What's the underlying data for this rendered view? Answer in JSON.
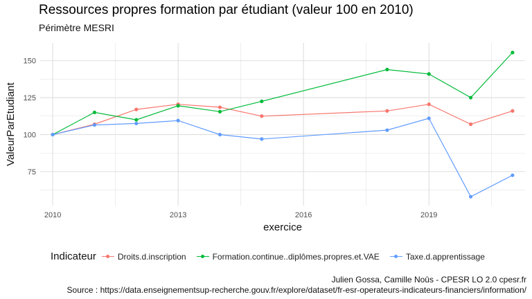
{
  "colors": {
    "Droits.d.inscription": "#F8766D",
    "Formation.continue..diplômes.propres.et.VAE": "#00BA38",
    "Taxe.d.apprentissage": "#619CFF",
    "grid": "#dedede"
  },
  "chart_data": {
    "type": "line",
    "title": "Ressources propres formation par étudiant (valeur 100 en 2010)",
    "subtitle": "Périmètre MESRI",
    "xlabel": "exercice",
    "ylabel": "ValeurParEtudiant",
    "x_ticks": [
      2010,
      2013,
      2016,
      2019
    ],
    "y_ticks": [
      75,
      100,
      125,
      150
    ],
    "xlim": [
      2009.7,
      2021.3
    ],
    "ylim": [
      52,
      162
    ],
    "grid": true,
    "legend_position": "bottom",
    "legend_title": "Indicateur",
    "x": [
      2010,
      2011,
      2012,
      2013,
      2014,
      2015,
      2018,
      2019,
      2020,
      2021
    ],
    "series": [
      {
        "name": "Droits.d.inscription",
        "values": [
          100,
          107,
          117,
          120.5,
          118.5,
          112.5,
          116,
          120.5,
          107,
          116
        ]
      },
      {
        "name": "Formation.continue..diplômes.propres.et.VAE",
        "values": [
          100,
          115,
          110,
          119.5,
          115.5,
          122.5,
          144,
          141,
          125,
          155.5
        ]
      },
      {
        "name": "Taxe.d.apprentissage",
        "values": [
          100,
          106.5,
          107.5,
          109.5,
          100,
          97,
          103,
          111,
          58,
          72.5
        ]
      }
    ],
    "caption_lines": [
      "Julien Gossa, Camille Noûs - CPESR LO 2.0 cpesr.fr",
      "Source : https://data.enseignementsup-recherche.gouv.fr/explore/dataset/fr-esr-operateurs-indicateurs-financiers/information/"
    ]
  }
}
